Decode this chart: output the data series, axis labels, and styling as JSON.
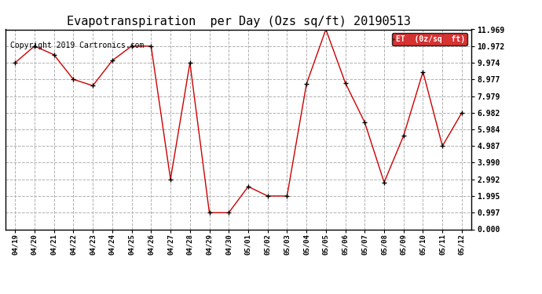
{
  "title": "Evapotranspiration  per Day (Ozs sq/ft) 20190513",
  "copyright": "Copyright 2019 Cartronics.com",
  "legend_label": "ET  (0z/sq  ft)",
  "x_labels": [
    "04/19",
    "04/20",
    "04/21",
    "04/22",
    "04/23",
    "04/24",
    "04/25",
    "04/26",
    "04/27",
    "04/28",
    "04/29",
    "04/30",
    "05/01",
    "05/02",
    "05/03",
    "05/04",
    "05/05",
    "05/06",
    "05/07",
    "05/08",
    "05/09",
    "05/10",
    "05/11",
    "05/12"
  ],
  "y_values": [
    9.974,
    10.972,
    10.45,
    8.977,
    8.6,
    10.1,
    10.972,
    10.972,
    2.992,
    9.974,
    0.997,
    0.997,
    2.56,
    1.995,
    1.995,
    8.7,
    11.969,
    8.77,
    6.4,
    2.81,
    5.6,
    9.43,
    4.987,
    6.982
  ],
  "line_color": "#cc0000",
  "marker_color": "#000000",
  "background_color": "#ffffff",
  "grid_color": "#b0b0b0",
  "ylim": [
    0.0,
    11.969
  ],
  "yticks": [
    0.0,
    0.997,
    1.995,
    2.992,
    3.99,
    4.987,
    5.984,
    6.982,
    7.979,
    8.977,
    9.974,
    10.972,
    11.969
  ],
  "title_fontsize": 11,
  "copyright_fontsize": 7,
  "legend_bg": "#cc0000",
  "legend_fg": "#ffffff",
  "fig_width": 6.9,
  "fig_height": 3.75,
  "dpi": 100
}
